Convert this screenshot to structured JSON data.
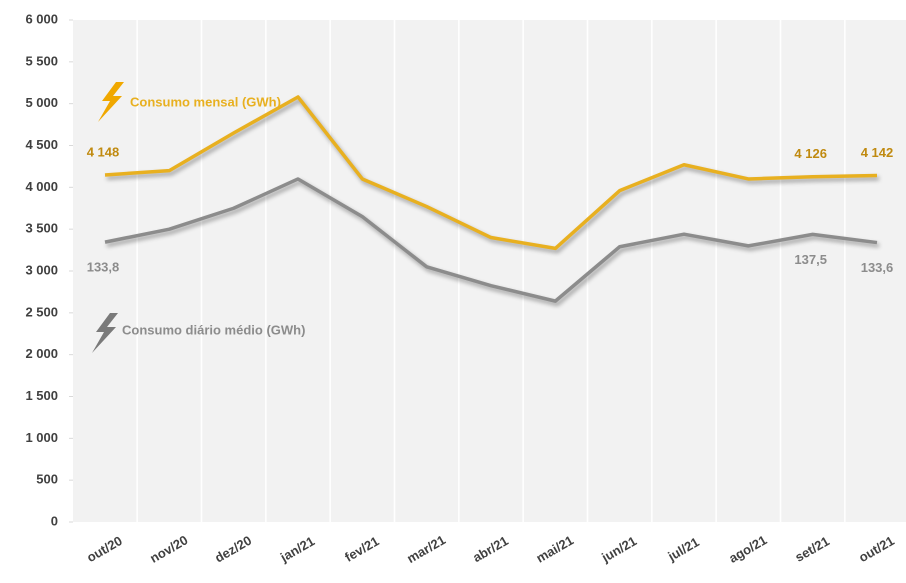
{
  "chart_data": {
    "type": "line",
    "categories": [
      "out/20",
      "nov/20",
      "dez/20",
      "jan/21",
      "fev/21",
      "mar/21",
      "abr/21",
      "mai/21",
      "jun/21",
      "jul/21",
      "ago/21",
      "set/21",
      "out/21"
    ],
    "series": [
      {
        "name": "Consumo mensal (GWh)",
        "color": "#e8b020",
        "values": [
          4148,
          4200,
          4650,
          5080,
          4100,
          3770,
          3400,
          3270,
          3960,
          4270,
          4100,
          4126,
          4142
        ],
        "value_labels": [
          "4 148",
          null,
          null,
          null,
          null,
          null,
          null,
          null,
          null,
          null,
          null,
          "4 126",
          "4 142"
        ]
      },
      {
        "name": "Consumo diário médio (GWh)",
        "color": "#8c8c8c",
        "axis": "y2",
        "values": [
          133.8,
          140,
          150,
          164,
          146,
          122,
          113,
          105.6,
          131.6,
          137.6,
          132,
          137.5,
          133.6
        ],
        "value_labels": [
          "133,8",
          null,
          null,
          null,
          null,
          null,
          null,
          null,
          null,
          null,
          null,
          "137,5",
          "133,6"
        ]
      }
    ],
    "ylim": [
      0,
      6000
    ],
    "yticks": [
      0,
      500,
      {
        "value": 1000,
        "label": "1 000"
      },
      {
        "value": 1500,
        "label": "1 500"
      },
      {
        "value": 2000,
        "label": "2 000"
      },
      {
        "value": 2500,
        "label": "2 500"
      },
      {
        "value": 3000,
        "label": "3 000"
      },
      {
        "value": 3500,
        "label": "3 500"
      },
      {
        "value": 4000,
        "label": "4 000"
      },
      {
        "value": 4500,
        "label": "4 500"
      },
      {
        "value": 5000,
        "label": "5 000"
      },
      {
        "value": 5500,
        "label": "5 500"
      },
      {
        "value": 6000,
        "label": "6 000"
      }
    ],
    "y2lim": [
      0,
      240
    ]
  }
}
